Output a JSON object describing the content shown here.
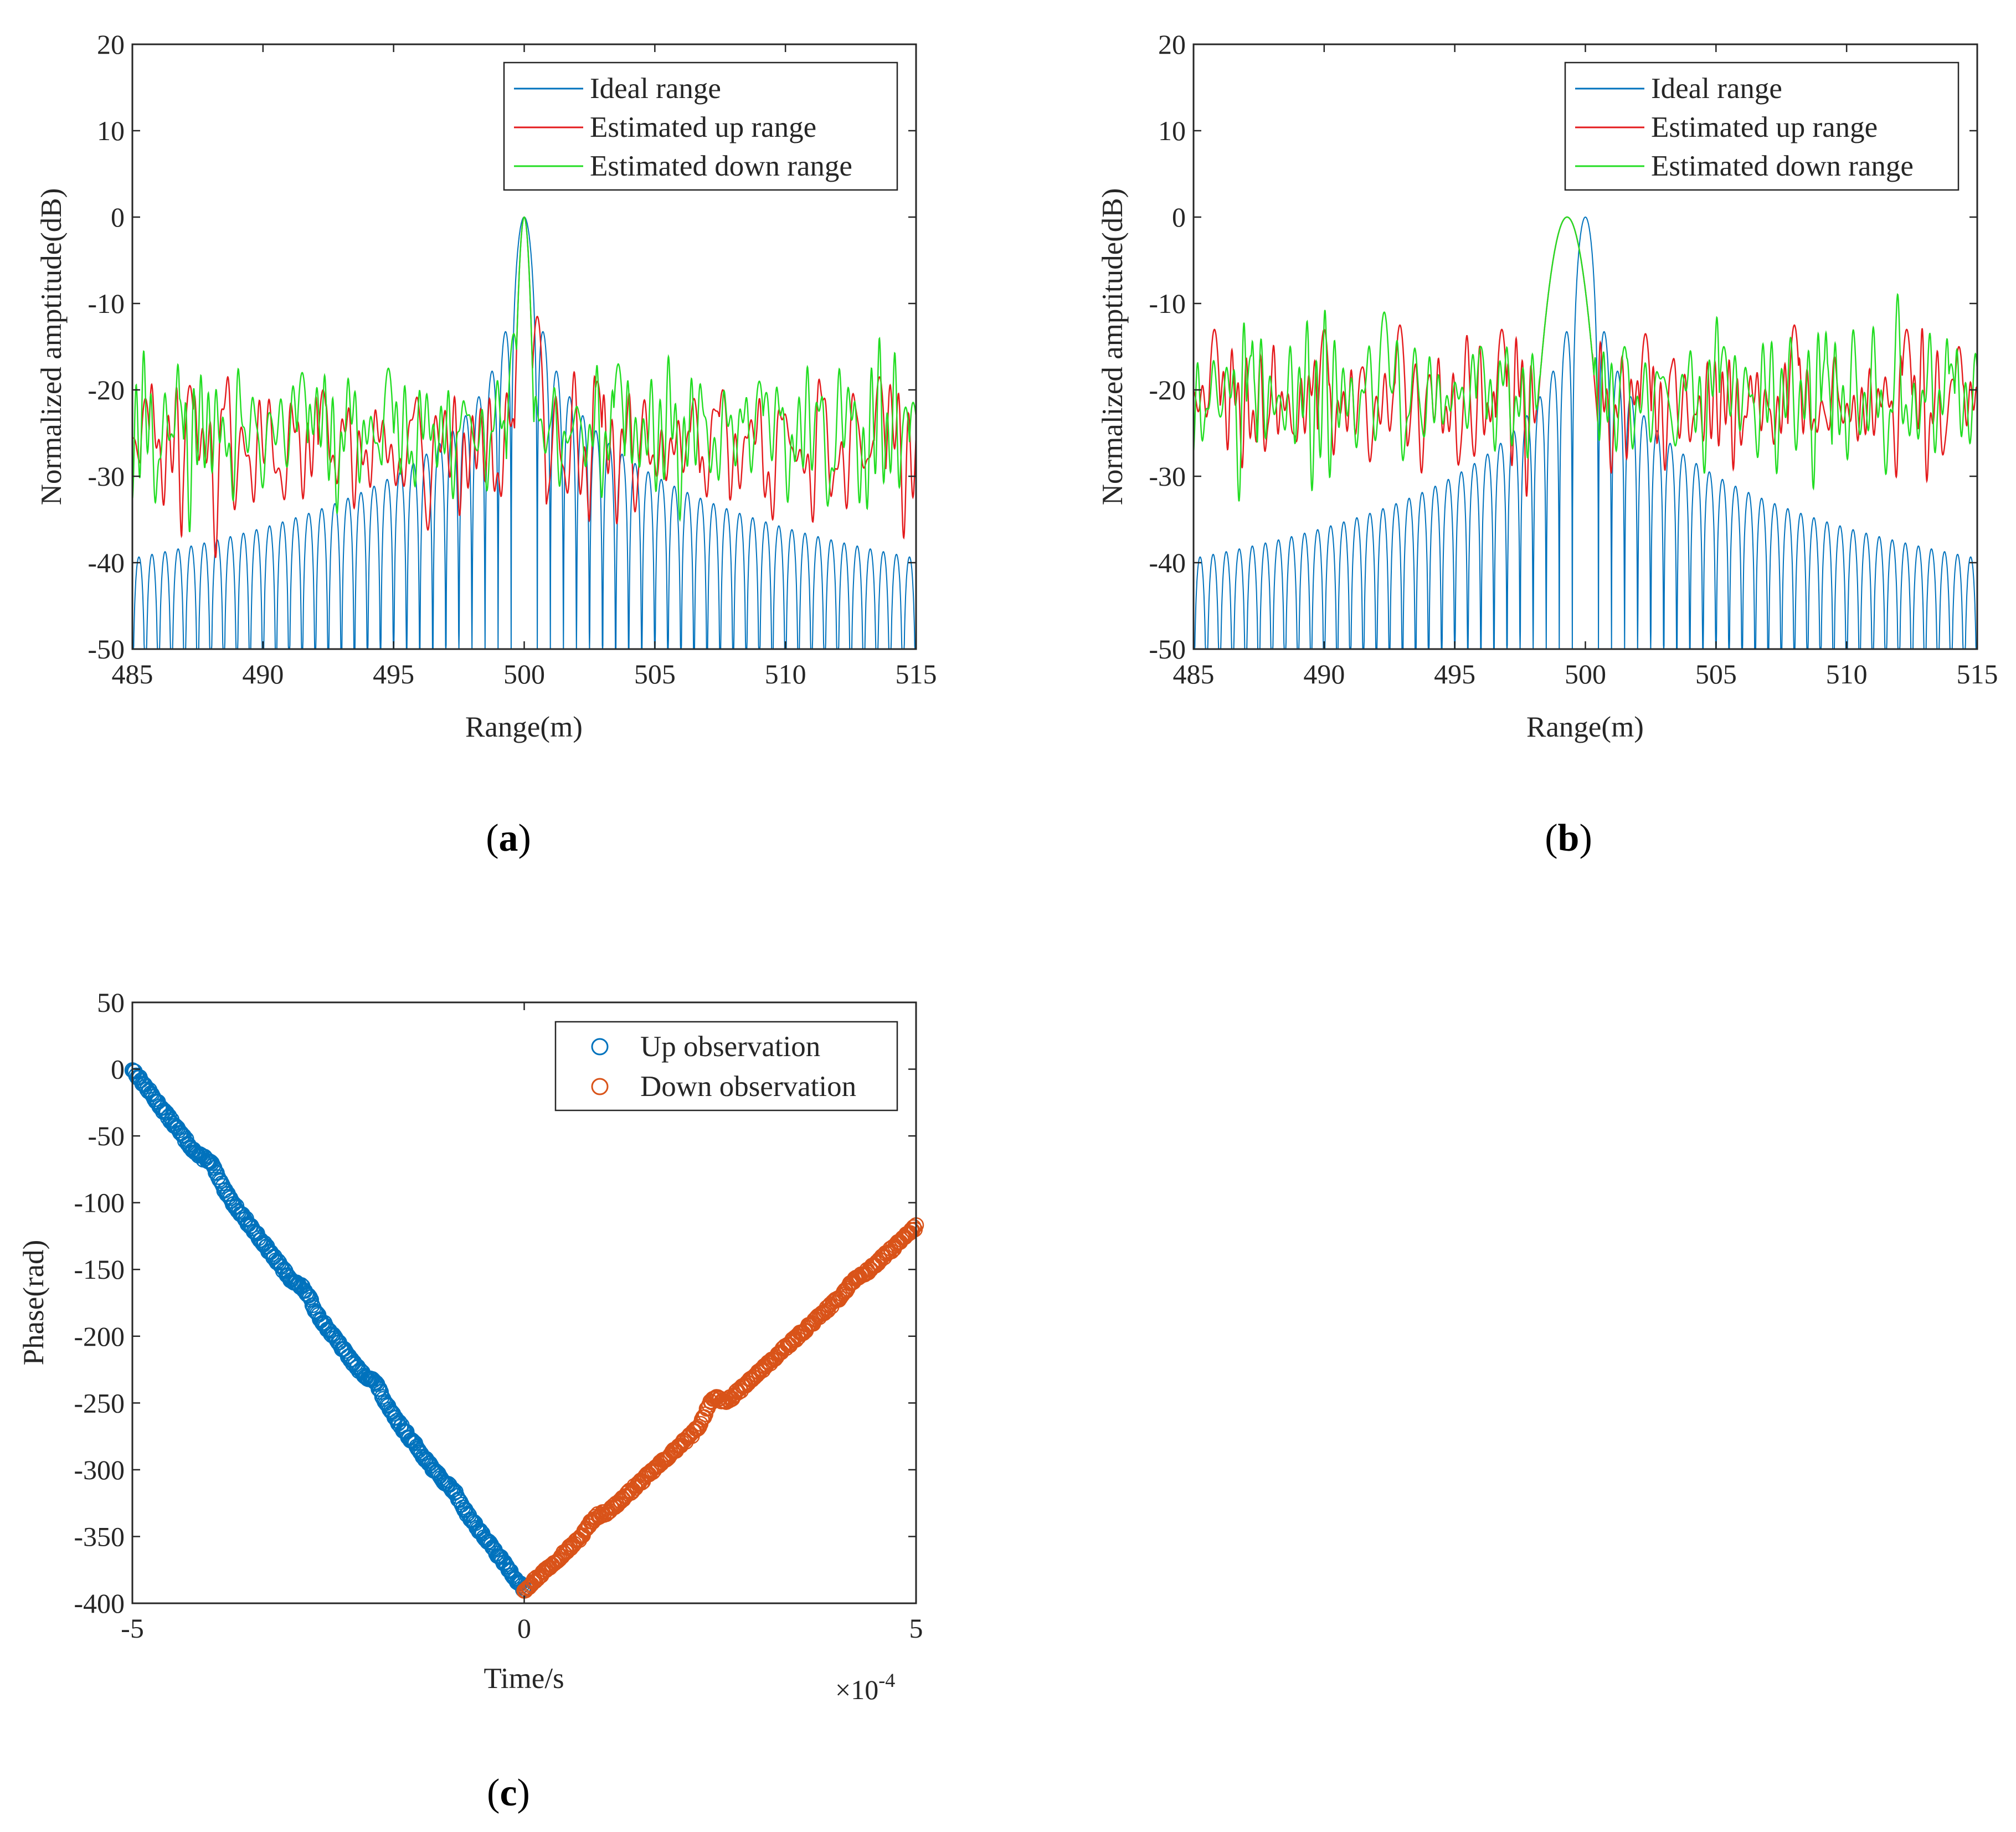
{
  "chart_data": [
    {
      "id": "a",
      "type": "line",
      "caption_letter": "a",
      "xlabel": "Range(m)",
      "ylabel": "Normalized amptitude(dB)",
      "xlim": [
        485,
        515
      ],
      "ylim": [
        -50,
        20
      ],
      "xticks": [
        485,
        490,
        495,
        500,
        505,
        510,
        515
      ],
      "yticks": [
        -50,
        -40,
        -30,
        -20,
        -10,
        0,
        10,
        20
      ],
      "legend_position": "top-right",
      "series": [
        {
          "name": "Ideal range",
          "color": "#0072BD",
          "kind": "sinc",
          "center": 500.0,
          "peak": 0,
          "null_spacing": 0.5
        },
        {
          "name": "Estimated up range",
          "color": "#E41A1C",
          "kind": "noisy",
          "center": 500.0,
          "peak": 0,
          "floor_db": -27,
          "seed": 11,
          "spikes": [
            [
              485.5,
              -21
            ],
            [
              487.2,
              -19.5
            ],
            [
              492.3,
              -20
            ],
            [
              500.5,
              -11.5
            ],
            [
              502.8,
              -19
            ],
            [
              506.5,
              -21
            ],
            [
              507.6,
              -20
            ],
            [
              513.6,
              -18.5
            ]
          ]
        },
        {
          "name": "Estimated down range",
          "color": "#22DD22",
          "kind": "noisy",
          "center": 500.0,
          "peak": 0,
          "floor_db": -25,
          "seed": 29,
          "spikes": [
            [
              486.8,
              -21
            ],
            [
              491.5,
              -18
            ],
            [
              494.8,
              -17.5
            ],
            [
              499.6,
              -13.5
            ],
            [
              503.6,
              -17
            ],
            [
              509.0,
              -19
            ],
            [
              514.6,
              -22
            ]
          ]
        }
      ]
    },
    {
      "id": "b",
      "type": "line",
      "caption_letter": "b",
      "xlabel": "Range(m)",
      "ylabel": "Normalized amptitude(dB)",
      "xlim": [
        485,
        515
      ],
      "ylim": [
        -50,
        20
      ],
      "xticks": [
        485,
        490,
        495,
        500,
        505,
        510,
        515
      ],
      "yticks": [
        -50,
        -40,
        -30,
        -20,
        -10,
        0,
        10,
        20
      ],
      "legend_position": "top-right",
      "series": [
        {
          "name": "Ideal range",
          "color": "#0072BD",
          "kind": "sinc",
          "center": 500.0,
          "peak": 0,
          "null_spacing": 0.5
        },
        {
          "name": "Estimated up range",
          "color": "#E41A1C",
          "kind": "noisy",
          "center": 499.3,
          "peak": 0,
          "floor_db": -22,
          "seed": 47,
          "wide": true,
          "spikes": [
            [
              485.8,
              -13
            ],
            [
              490.0,
              -13
            ],
            [
              492.9,
              -12.5
            ],
            [
              496.8,
              -13
            ],
            [
              502.3,
              -13.5
            ],
            [
              508.0,
              -12.5
            ],
            [
              512.3,
              -13
            ],
            [
              514.3,
              -15
            ]
          ]
        },
        {
          "name": "Estimated down range",
          "color": "#22DD22",
          "kind": "noisy",
          "center": 499.3,
          "peak": 0,
          "floor_db": -21,
          "seed": 83,
          "wide": true,
          "spikes": [
            [
              487.2,
              -16
            ],
            [
              492.3,
              -11
            ],
            [
              496.0,
              -15
            ],
            [
              501.5,
              -15
            ],
            [
              505.3,
              -15
            ],
            [
              509.2,
              -16
            ],
            [
              514.0,
              -17
            ]
          ]
        }
      ]
    },
    {
      "id": "c",
      "type": "scatter",
      "caption_letter": "c",
      "xlabel": "Time/s",
      "ylabel": "Phase(rad)",
      "x_exponent": "×10",
      "x_exponent_power": "-4",
      "xlim": [
        -5,
        5
      ],
      "ylim": [
        -400,
        50
      ],
      "xticks": [
        -5,
        0,
        5
      ],
      "yticks": [
        -400,
        -350,
        -300,
        -250,
        -200,
        -150,
        -100,
        -50,
        0,
        50
      ],
      "legend_position": "top-right",
      "series": [
        {
          "name": "Up observation",
          "color": "#0072BD",
          "x_start": -5,
          "x_end": 0,
          "y_start": 0,
          "y_end": -390,
          "bumps": [
            [
              -4.0,
              8
            ],
            [
              -2.8,
              6
            ],
            [
              -1.9,
              7
            ],
            [
              -0.9,
              4
            ]
          ]
        },
        {
          "name": "Down observation",
          "color": "#D95319",
          "x_start": 0,
          "x_end": 5,
          "y_start": -390,
          "y_end": -118,
          "bumps": [
            [
              0.9,
              5
            ],
            [
              2.4,
              12
            ],
            [
              4.2,
              3
            ]
          ]
        }
      ]
    }
  ]
}
